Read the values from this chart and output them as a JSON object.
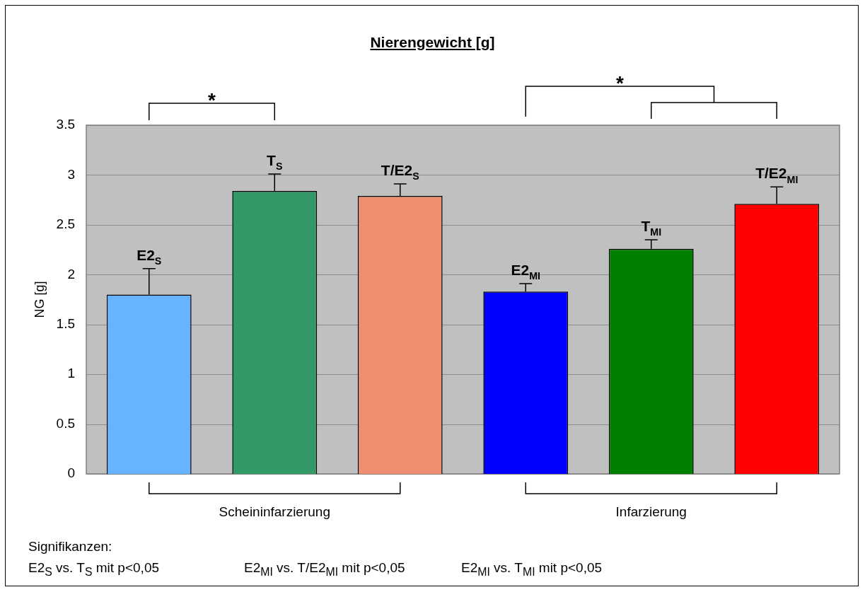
{
  "chart_data": {
    "type": "bar",
    "title": "Nierengewicht [g]",
    "ylabel": "NG [g]",
    "categories": [
      "E2$_{S}$",
      "T$_{S}$",
      "T/E2$_{S}$",
      "E2$_{MI}$",
      "T$_{MI}$",
      "T/E2$_{MI}$"
    ],
    "values": [
      1.8,
      2.84,
      2.79,
      1.83,
      2.26,
      2.71
    ],
    "errors": [
      0.26,
      0.17,
      0.12,
      0.08,
      0.09,
      0.17
    ],
    "colors": [
      "#66b3ff",
      "#339966",
      "#ee8e70",
      "#0000ff",
      "#008000",
      "#ff0000"
    ],
    "ylim": [
      0,
      3.5
    ],
    "yticks": [
      0,
      0.5,
      1,
      1.5,
      2,
      2.5,
      3,
      3.5
    ],
    "grid": "y",
    "annotations": [
      "*",
      "*",
      "Scheininfarzierung",
      "Infarzierung",
      "Signifikanzen:",
      "E2$_{S}$ vs. T$_{S}$ mit p<0,05",
      "E2$_{MI}$ vs. T/E2$_{MI}$ mit p<0,05",
      "E2$_{MI}$ vs. T$_{MI}$ mit p<0,05"
    ]
  }
}
